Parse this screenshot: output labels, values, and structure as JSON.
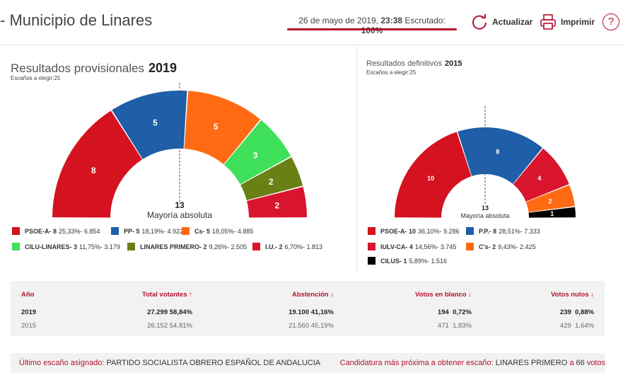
{
  "header": {
    "title": "- Municipio de Linares",
    "date": "26 de mayo de 2019,",
    "time": "23:38",
    "scrutiny_label": "Escrutado:",
    "scrutiny_value": "100%",
    "refresh_label": "Actualizar",
    "print_label": "Imprimir",
    "help_icon": "?"
  },
  "current": {
    "title": "Resultados provisionales",
    "year": "2019",
    "seats_label": "Escaños a elegir:",
    "seats_value": "25",
    "majority_value": "13",
    "majority_label": "Mayoría absoluta",
    "parties": [
      {
        "name": "PSOE-A",
        "seats": 8,
        "seats_text": "PSOE-A- 8",
        "detail": "25,33%- 6.854",
        "color": "#d5121f"
      },
      {
        "name": "PP",
        "seats": 5,
        "seats_text": "PP- 5",
        "detail": "18,19%- 4.922",
        "color": "#1f5ea8"
      },
      {
        "name": "Cs",
        "seats": 5,
        "seats_text": "Cs- 5",
        "detail": "18,05%- 4.885",
        "color": "#ff6a13"
      },
      {
        "name": "CILU-LINARES",
        "seats": 3,
        "seats_text": "CILU-LINARES- 3",
        "detail": "11,75%- 3.179",
        "color": "#3fe05a"
      },
      {
        "name": "LINARES PRIMERO",
        "seats": 2,
        "seats_text": "LINARES PRIMERO- 2",
        "detail": "9,26%- 2.505",
        "color": "#6a7f14"
      },
      {
        "name": "I.U.",
        "seats": 2,
        "seats_text": "I.U.- 2",
        "detail": "6,70%- 1.813",
        "color": "#d9152e"
      }
    ]
  },
  "previous": {
    "title": "Resultados definitivos",
    "year": "2015",
    "seats_label": "Escaños a elegir:",
    "seats_value": "25",
    "majority_value": "13",
    "majority_label": "Mayoría absoluta",
    "parties": [
      {
        "name": "PSOE-A",
        "seats": 10,
        "seats_text": "PSOE-A- 10",
        "detail": "36,10%- 9.286",
        "color": "#d5121f"
      },
      {
        "name": "P.P.",
        "seats": 8,
        "seats_text": "P.P.- 8",
        "detail": "28,51%- 7.333",
        "color": "#1f5ea8"
      },
      {
        "name": "IULV-CA",
        "seats": 4,
        "seats_text": "IULV-CA- 4",
        "detail": "14,56%- 3.745",
        "color": "#d9152e"
      },
      {
        "name": "C's",
        "seats": 2,
        "seats_text": "C's- 2",
        "detail": "9,43%- 2.425",
        "color": "#ff6a13"
      },
      {
        "name": "CILUS",
        "seats": 1,
        "seats_text": "CILUS- 1",
        "detail": "5,89%- 1.516",
        "color": "#000000"
      }
    ]
  },
  "stats": {
    "headers": {
      "year": "Año",
      "voters": "Total votantes",
      "abstention": "Abstención",
      "blank": "Votos en blanco",
      "null": "Votos nulos"
    },
    "arrows": {
      "voters": "↑",
      "abstention": "↓",
      "blank": "↓",
      "null": "↓"
    },
    "rows": [
      {
        "year": "2019",
        "voters": "27.299",
        "voters_pct": "58,84%",
        "abstention": "19.100",
        "abstention_pct": "41,16%",
        "blank": "194",
        "blank_pct": "0,72%",
        "null": "239",
        "null_pct": "0,88%"
      },
      {
        "year": "2015",
        "voters": "26.152",
        "voters_pct": "54,81%",
        "abstention": "21.560",
        "abstention_pct": "45,19%",
        "blank": "471",
        "blank_pct": "1,83%",
        "null": "429",
        "null_pct": "1,64%"
      }
    ]
  },
  "footer": {
    "last_seat_label": "Último escaño asignado:",
    "last_seat_value": "PARTIDO SOCIALISTA OBRERO ESPAÑOL DE ANDALUCIA",
    "next_label": "Candidatura más próxima a obtener escaño:",
    "next_value": "LINARES PRIMERO",
    "next_mid": "a",
    "next_votes": "66",
    "next_votes_suffix": "votos"
  }
}
